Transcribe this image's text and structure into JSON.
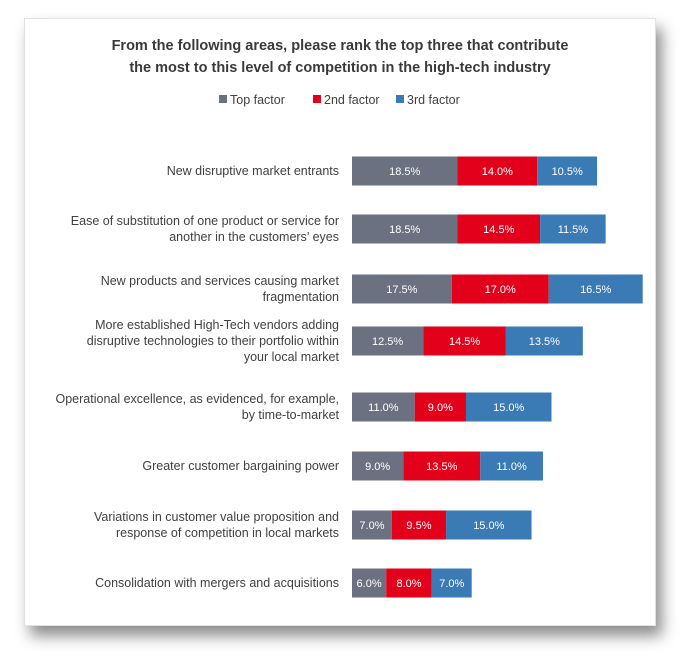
{
  "chart_data": {
    "type": "bar",
    "orientation": "horizontal",
    "stacked": true,
    "title_lines": [
      "From the following areas, please rank the top three that contribute",
      "the most to this level of competition in the high-tech industry"
    ],
    "legend_position": "top",
    "grid": false,
    "categories": [
      [
        "New disruptive market entrants"
      ],
      [
        "Ease of substitution of one product or service for",
        "another in the customers’ eyes"
      ],
      [
        "New products and services causing market",
        "fragmentation"
      ],
      [
        "More established High-Tech vendors adding",
        "disruptive technologies to their portfolio within",
        "your local market"
      ],
      [
        "Operational excellence, as evidenced, for example,",
        "by time-to-market"
      ],
      [
        "Greater customer bargaining power"
      ],
      [
        "Variations in customer value proposition and",
        "response of competition in local markets"
      ],
      [
        "Consolidation with mergers and acquisitions"
      ]
    ],
    "series": [
      {
        "name": "Top factor",
        "color": "#6b7180",
        "values": [
          18.5,
          18.5,
          17.5,
          12.5,
          11.0,
          9.0,
          7.0,
          6.0
        ],
        "labels": [
          "18.5%",
          "18.5%",
          "17.5%",
          "12.5%",
          "11.0%",
          "9.0%",
          "7.0%",
          "6.0%"
        ]
      },
      {
        "name": "2nd factor",
        "color": "#e2001a",
        "values": [
          14.0,
          14.5,
          17.0,
          14.5,
          9.0,
          13.5,
          9.5,
          8.0
        ],
        "labels": [
          "14.0%",
          "14.5%",
          "17.0%",
          "14.5%",
          "9.0%",
          "13.5%",
          "9.5%",
          "8.0%"
        ]
      },
      {
        "name": "3rd factor",
        "color": "#3a7ab5",
        "values": [
          10.5,
          11.5,
          16.5,
          13.5,
          15.0,
          11.0,
          15.0,
          7.0
        ],
        "labels": [
          "10.5%",
          "11.5%",
          "16.5%",
          "13.5%",
          "15.0%",
          "11.0%",
          "15.0%",
          "7.0%"
        ]
      }
    ]
  }
}
